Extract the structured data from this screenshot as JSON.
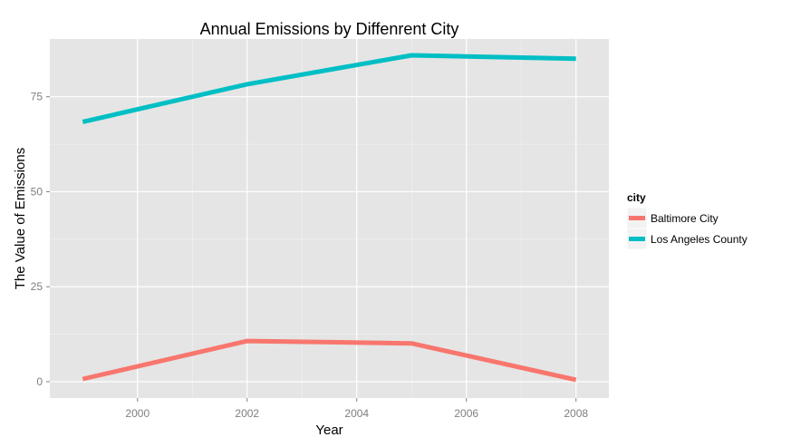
{
  "chart_data": {
    "type": "line",
    "title": "Annual Emissions by Diffenrent City",
    "xlabel": "Year",
    "ylabel": "The Value of Emissions",
    "x": [
      1999,
      2002,
      2005,
      2008
    ],
    "xlim": [
      1998.4,
      2008.6
    ],
    "ylim": [
      -4.3,
      90.2
    ],
    "x_ticks": [
      2000,
      2002,
      2004,
      2006,
      2008
    ],
    "y_ticks": [
      0,
      25,
      50,
      75
    ],
    "x_tick_labels": [
      "2000",
      "2002",
      "2004",
      "2006",
      "2008"
    ],
    "y_tick_labels": [
      "0",
      "25",
      "50",
      "75"
    ],
    "grid": true,
    "legend": {
      "title": "city",
      "position": "right"
    },
    "series": [
      {
        "name": "Baltimore City",
        "color": "#F8766D",
        "values": [
          0.7,
          10.7,
          10.1,
          0.5
        ]
      },
      {
        "name": "Los Angeles County",
        "color": "#00BFC4",
        "values": [
          68.4,
          78.3,
          85.9,
          85.0
        ]
      }
    ]
  },
  "colors": {
    "panel_background": "#E5E5E5",
    "gridline": "#FFFFFF"
  }
}
